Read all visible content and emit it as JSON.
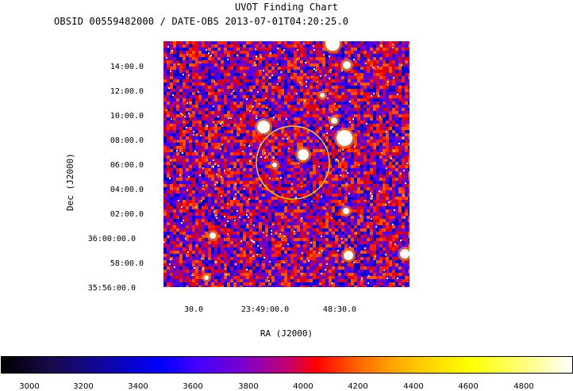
{
  "chart_title": "UVOT Finding Chart",
  "subtitle": "OBSID 00559482000 / DATE-OBS 2013-07-01T04:20:25.0",
  "axes": {
    "xlabel": "RA (J2000)",
    "ylabel": "Dec (J2000)",
    "x_ticks": [
      "30.0",
      "23:49:00.0",
      "48:30.0"
    ],
    "y_ticks": [
      "14:00.0",
      "12:00.0",
      "10:00.0",
      "08:00.0",
      "06:00.0",
      "04:00.0",
      "02:00.0",
      "36:00:00.0",
      "58:00.0",
      "35:56:00.0"
    ]
  },
  "colorbar": {
    "tick_labels": [
      "3000",
      "3200",
      "3400",
      "3600",
      "3800",
      "4000",
      "4200",
      "4400",
      "4600",
      "4800"
    ]
  },
  "colors": {
    "circle": "#ffd000"
  }
}
